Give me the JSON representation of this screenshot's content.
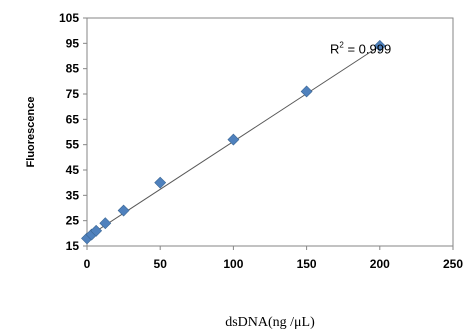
{
  "chart_data": {
    "type": "scatter",
    "title": "",
    "xlabel": "dsDNA(ng /μL)",
    "ylabel": "Fluorescence",
    "xlim": [
      0,
      250
    ],
    "ylim": [
      15,
      105
    ],
    "x_ticks": [
      "0",
      "50",
      "100",
      "150",
      "200",
      "250"
    ],
    "y_ticks": [
      "15",
      "25",
      "35",
      "45",
      "55",
      "65",
      "75",
      "85",
      "95",
      "105"
    ],
    "grid": false,
    "legend": "none",
    "series": [
      {
        "x": [
          0,
          3.125,
          6.25,
          12.5,
          25,
          50,
          100,
          150,
          200
        ],
        "y": [
          18,
          19.5,
          21,
          24,
          29,
          40,
          57,
          76,
          94
        ],
        "marker": "diamond",
        "color": "#4f81bd"
      }
    ],
    "trendline": {
      "type": "linear",
      "x": [
        0,
        200
      ],
      "y": [
        18.5,
        94
      ],
      "color": "#595959"
    },
    "annotations": [
      {
        "prefix": "R",
        "superscript": "2",
        "suffix": " = 0.999",
        "at": [
          166,
          93
        ]
      }
    ]
  }
}
